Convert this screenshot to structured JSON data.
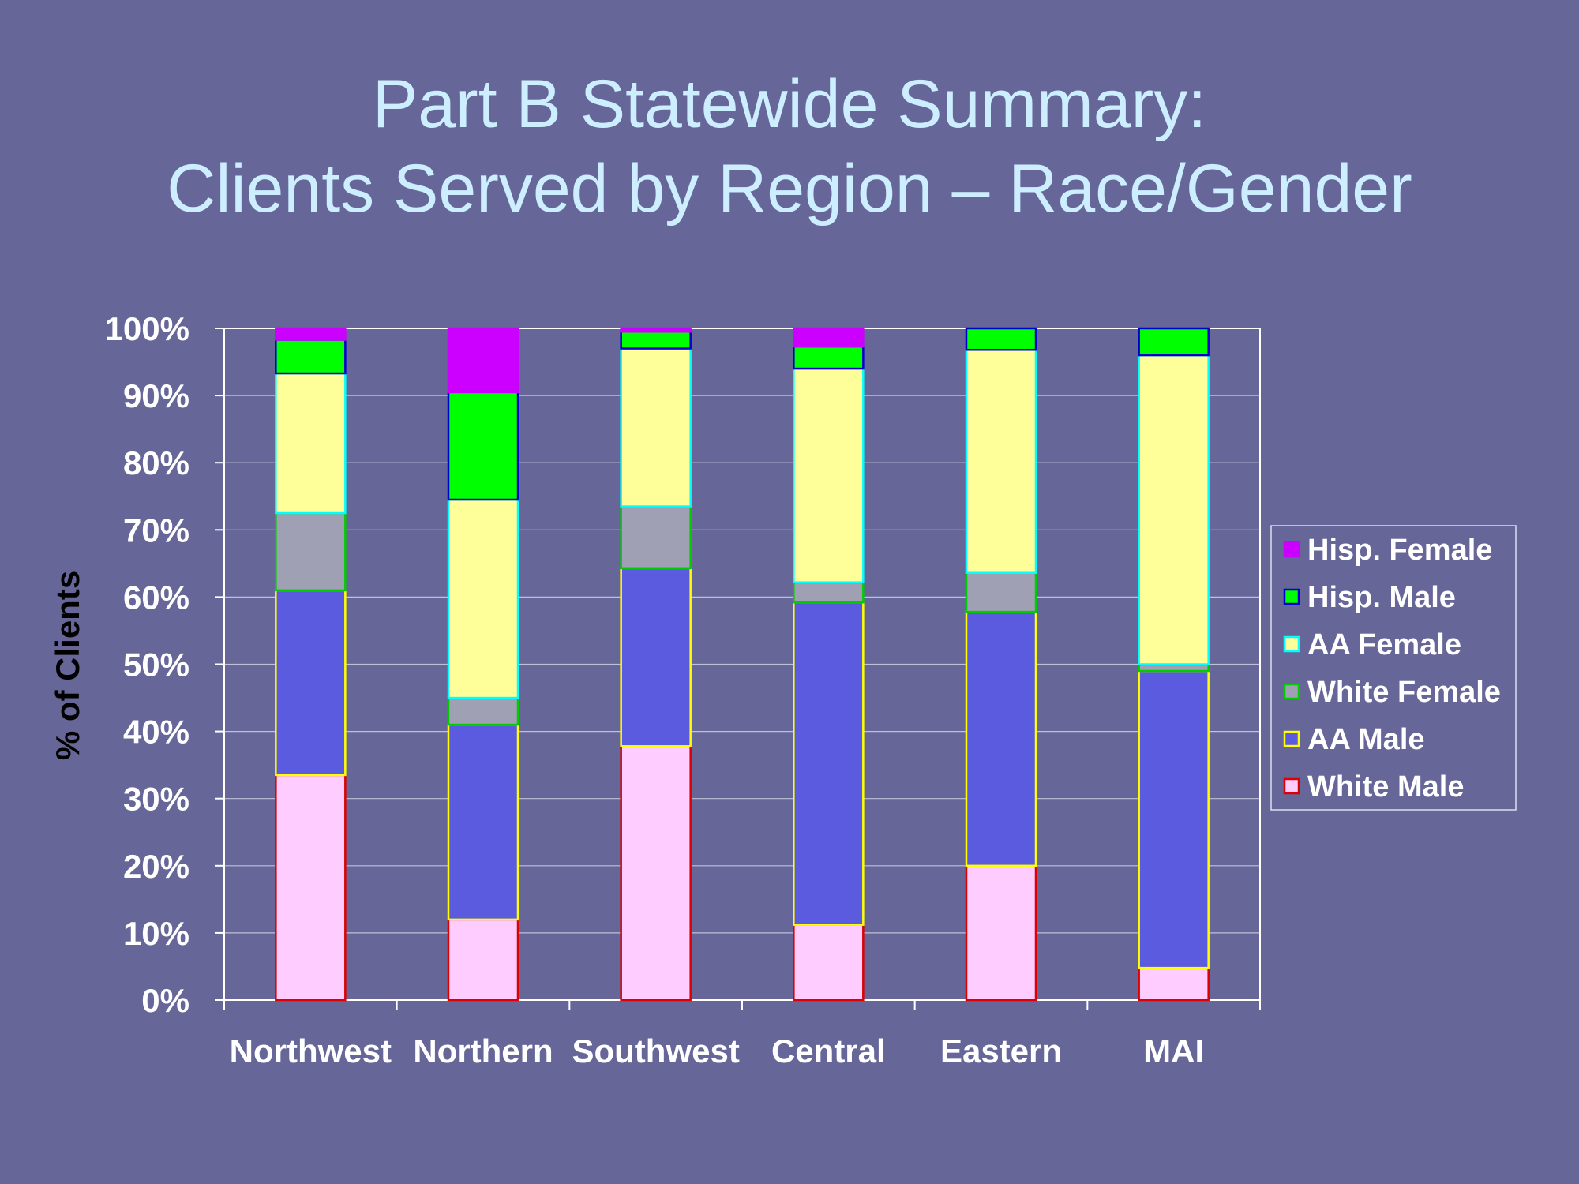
{
  "title_line1": "Part B Statewide Summary:",
  "title_line2": "Clients Served by Region – Race/Gender",
  "chart_data": {
    "type": "bar",
    "stacked": true,
    "percent": true,
    "title": "Part B Statewide Summary: Clients Served by Region – Race/Gender",
    "xlabel": "",
    "ylabel": "% of Clients",
    "ylim": [
      0,
      100
    ],
    "yticks": [
      "0%",
      "10%",
      "20%",
      "30%",
      "40%",
      "50%",
      "60%",
      "70%",
      "80%",
      "90%",
      "100%"
    ],
    "categories": [
      "Northwest",
      "Northern",
      "Southwest",
      "Central",
      "Eastern",
      "MAI"
    ],
    "grid": true,
    "legend_position": "right",
    "series": [
      {
        "name": "White Male",
        "fill": "#FFCCFF",
        "stroke": "#DD0000",
        "values": [
          33.5,
          12,
          37.8,
          11.2,
          20,
          4.8
        ]
      },
      {
        "name": "AA Male",
        "fill": "#5B5BE0",
        "stroke": "#FFFF00",
        "values": [
          27.5,
          29,
          26.5,
          48,
          37.8,
          44.2
        ]
      },
      {
        "name": "White Female",
        "fill": "#A0A0B4",
        "stroke": "#00CC00",
        "values": [
          11.5,
          4,
          9.2,
          3,
          5.8,
          1
        ]
      },
      {
        "name": "AA Female",
        "fill": "#FFFF99",
        "stroke": "#00FFFF",
        "values": [
          20.8,
          29.5,
          23.5,
          31.8,
          33.2,
          46
        ]
      },
      {
        "name": "Hisp. Male",
        "fill": "#00FF00",
        "stroke": "#0000CC",
        "values": [
          5,
          16,
          2.5,
          3.3,
          3.2,
          4
        ]
      },
      {
        "name": "Hisp. Female",
        "fill": "#CC00FF",
        "stroke": "#CC00FF",
        "values": [
          1.7,
          9.5,
          0.5,
          2.7,
          0,
          0
        ]
      }
    ]
  }
}
